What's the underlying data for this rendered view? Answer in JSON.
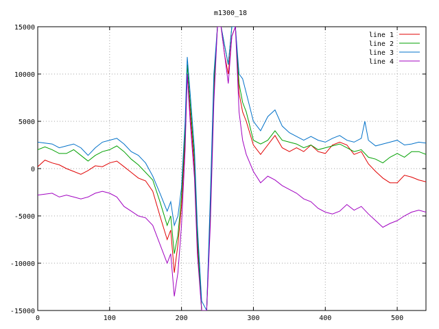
{
  "chart_data": {
    "type": "line",
    "title": "m1300_18",
    "xlabel": "",
    "ylabel": "",
    "xlim": [
      0,
      540
    ],
    "ylim": [
      -15000,
      15000
    ],
    "x_ticks": [
      0,
      100,
      200,
      300,
      400,
      500
    ],
    "y_ticks": [
      -15000,
      -10000,
      -5000,
      0,
      5000,
      10000,
      15000
    ],
    "x_tick_labels": [
      "0",
      "100",
      "200",
      "300",
      "400",
      "500"
    ],
    "y_tick_labels": [
      "-15000",
      "-10000",
      "-5000",
      "0",
      "5000",
      "10000",
      "15000"
    ],
    "grid": true,
    "legend_position": "top-right",
    "series": [
      {
        "name": "line 1",
        "color": "#e00000",
        "points": [
          [
            0,
            200
          ],
          [
            10,
            900
          ],
          [
            20,
            600
          ],
          [
            30,
            400
          ],
          [
            40,
            0
          ],
          [
            50,
            -300
          ],
          [
            60,
            -600
          ],
          [
            70,
            -200
          ],
          [
            80,
            300
          ],
          [
            90,
            200
          ],
          [
            100,
            600
          ],
          [
            110,
            800
          ],
          [
            120,
            200
          ],
          [
            130,
            -400
          ],
          [
            140,
            -1000
          ],
          [
            150,
            -1300
          ],
          [
            160,
            -2400
          ],
          [
            170,
            -5000
          ],
          [
            180,
            -7500
          ],
          [
            185,
            -6500
          ],
          [
            190,
            -11000
          ],
          [
            195,
            -8000
          ],
          [
            200,
            -4000
          ],
          [
            205,
            3000
          ],
          [
            208,
            10000
          ],
          [
            212,
            6000
          ],
          [
            218,
            0
          ],
          [
            222,
            -8000
          ],
          [
            228,
            -15000
          ],
          [
            235,
            -15000
          ],
          [
            240,
            -5000
          ],
          [
            245,
            8000
          ],
          [
            250,
            15000
          ],
          [
            255,
            15000
          ],
          [
            260,
            12000
          ],
          [
            265,
            10000
          ],
          [
            270,
            14000
          ],
          [
            275,
            15000
          ],
          [
            280,
            8000
          ],
          [
            285,
            6000
          ],
          [
            290,
            5000
          ],
          [
            300,
            2500
          ],
          [
            310,
            1500
          ],
          [
            320,
            2500
          ],
          [
            330,
            3500
          ],
          [
            340,
            2200
          ],
          [
            350,
            1800
          ],
          [
            360,
            2200
          ],
          [
            370,
            1800
          ],
          [
            380,
            2500
          ],
          [
            390,
            1800
          ],
          [
            400,
            1600
          ],
          [
            410,
            2500
          ],
          [
            420,
            2800
          ],
          [
            430,
            2500
          ],
          [
            440,
            1500
          ],
          [
            450,
            1800
          ],
          [
            460,
            500
          ],
          [
            470,
            -300
          ],
          [
            480,
            -1000
          ],
          [
            490,
            -1500
          ],
          [
            500,
            -1500
          ],
          [
            510,
            -700
          ],
          [
            520,
            -900
          ],
          [
            530,
            -1200
          ],
          [
            540,
            -1400
          ]
        ]
      },
      {
        "name": "line 2",
        "color": "#00a000",
        "points": [
          [
            0,
            2000
          ],
          [
            10,
            2300
          ],
          [
            20,
            2000
          ],
          [
            30,
            1600
          ],
          [
            40,
            1600
          ],
          [
            50,
            2000
          ],
          [
            60,
            1400
          ],
          [
            70,
            800
          ],
          [
            80,
            1400
          ],
          [
            90,
            1800
          ],
          [
            100,
            2000
          ],
          [
            110,
            2400
          ],
          [
            120,
            1800
          ],
          [
            130,
            1000
          ],
          [
            140,
            400
          ],
          [
            150,
            -400
          ],
          [
            160,
            -1200
          ],
          [
            170,
            -3500
          ],
          [
            180,
            -6000
          ],
          [
            185,
            -5000
          ],
          [
            190,
            -9000
          ],
          [
            195,
            -7000
          ],
          [
            200,
            -3000
          ],
          [
            205,
            4000
          ],
          [
            208,
            11000
          ],
          [
            212,
            7000
          ],
          [
            218,
            1000
          ],
          [
            222,
            -7000
          ],
          [
            228,
            -15000
          ],
          [
            235,
            -15000
          ],
          [
            240,
            -4000
          ],
          [
            245,
            9000
          ],
          [
            250,
            15000
          ],
          [
            255,
            15000
          ],
          [
            260,
            13000
          ],
          [
            265,
            11000
          ],
          [
            270,
            15000
          ],
          [
            275,
            15000
          ],
          [
            280,
            9000
          ],
          [
            285,
            7000
          ],
          [
            290,
            6000
          ],
          [
            300,
            3000
          ],
          [
            310,
            2600
          ],
          [
            320,
            3000
          ],
          [
            330,
            4000
          ],
          [
            340,
            3000
          ],
          [
            350,
            2800
          ],
          [
            360,
            2600
          ],
          [
            370,
            2200
          ],
          [
            380,
            2500
          ],
          [
            390,
            2000
          ],
          [
            400,
            2200
          ],
          [
            410,
            2400
          ],
          [
            420,
            2600
          ],
          [
            430,
            2200
          ],
          [
            440,
            1800
          ],
          [
            450,
            2000
          ],
          [
            460,
            1200
          ],
          [
            470,
            1000
          ],
          [
            480,
            600
          ],
          [
            490,
            1200
          ],
          [
            500,
            1600
          ],
          [
            510,
            1200
          ],
          [
            520,
            1800
          ],
          [
            530,
            1800
          ],
          [
            540,
            1500
          ]
        ]
      },
      {
        "name": "line 3",
        "color": "#0070c8",
        "points": [
          [
            0,
            2800
          ],
          [
            10,
            2700
          ],
          [
            20,
            2600
          ],
          [
            30,
            2200
          ],
          [
            40,
            2400
          ],
          [
            50,
            2600
          ],
          [
            60,
            2200
          ],
          [
            70,
            1400
          ],
          [
            80,
            2200
          ],
          [
            90,
            2800
          ],
          [
            100,
            3000
          ],
          [
            110,
            3200
          ],
          [
            120,
            2600
          ],
          [
            130,
            1800
          ],
          [
            140,
            1400
          ],
          [
            150,
            600
          ],
          [
            160,
            -800
          ],
          [
            170,
            -2600
          ],
          [
            180,
            -4500
          ],
          [
            185,
            -3500
          ],
          [
            190,
            -6000
          ],
          [
            195,
            -5000
          ],
          [
            200,
            -2000
          ],
          [
            205,
            5000
          ],
          [
            208,
            11800
          ],
          [
            212,
            8000
          ],
          [
            218,
            2000
          ],
          [
            222,
            -6000
          ],
          [
            228,
            -14000
          ],
          [
            235,
            -15000
          ],
          [
            240,
            -3000
          ],
          [
            245,
            10000
          ],
          [
            250,
            15000
          ],
          [
            255,
            15000
          ],
          [
            260,
            13000
          ],
          [
            265,
            11000
          ],
          [
            270,
            15000
          ],
          [
            275,
            15000
          ],
          [
            280,
            10000
          ],
          [
            285,
            9500
          ],
          [
            290,
            8000
          ],
          [
            300,
            5000
          ],
          [
            310,
            4000
          ],
          [
            320,
            5500
          ],
          [
            330,
            6200
          ],
          [
            340,
            4500
          ],
          [
            350,
            3800
          ],
          [
            360,
            3400
          ],
          [
            370,
            3000
          ],
          [
            380,
            3400
          ],
          [
            390,
            3000
          ],
          [
            400,
            2800
          ],
          [
            410,
            3200
          ],
          [
            420,
            3500
          ],
          [
            430,
            3000
          ],
          [
            440,
            2800
          ],
          [
            450,
            3200
          ],
          [
            455,
            5000
          ],
          [
            460,
            3000
          ],
          [
            470,
            2400
          ],
          [
            480,
            2600
          ],
          [
            490,
            2800
          ],
          [
            500,
            3000
          ],
          [
            510,
            2500
          ],
          [
            520,
            2600
          ],
          [
            530,
            2800
          ],
          [
            540,
            2700
          ]
        ]
      },
      {
        "name": "line 4",
        "color": "#a000c0",
        "points": [
          [
            0,
            -2800
          ],
          [
            10,
            -2700
          ],
          [
            20,
            -2600
          ],
          [
            30,
            -3000
          ],
          [
            40,
            -2800
          ],
          [
            50,
            -3000
          ],
          [
            60,
            -3200
          ],
          [
            70,
            -3000
          ],
          [
            80,
            -2600
          ],
          [
            90,
            -2400
          ],
          [
            100,
            -2600
          ],
          [
            110,
            -3000
          ],
          [
            120,
            -4000
          ],
          [
            130,
            -4500
          ],
          [
            140,
            -5000
          ],
          [
            150,
            -5200
          ],
          [
            160,
            -6000
          ],
          [
            170,
            -8000
          ],
          [
            180,
            -10000
          ],
          [
            185,
            -9000
          ],
          [
            190,
            -13500
          ],
          [
            195,
            -11000
          ],
          [
            200,
            -6000
          ],
          [
            205,
            2000
          ],
          [
            208,
            10000
          ],
          [
            212,
            5000
          ],
          [
            218,
            -1000
          ],
          [
            222,
            -9000
          ],
          [
            228,
            -15000
          ],
          [
            235,
            -15000
          ],
          [
            240,
            -6000
          ],
          [
            245,
            7000
          ],
          [
            250,
            15000
          ],
          [
            255,
            15000
          ],
          [
            260,
            12000
          ],
          [
            265,
            9000
          ],
          [
            270,
            14000
          ],
          [
            275,
            15000
          ],
          [
            280,
            6000
          ],
          [
            285,
            3000
          ],
          [
            290,
            1500
          ],
          [
            300,
            -300
          ],
          [
            310,
            -1500
          ],
          [
            320,
            -800
          ],
          [
            330,
            -1200
          ],
          [
            340,
            -1800
          ],
          [
            350,
            -2200
          ],
          [
            360,
            -2600
          ],
          [
            370,
            -3200
          ],
          [
            380,
            -3500
          ],
          [
            390,
            -4200
          ],
          [
            400,
            -4600
          ],
          [
            410,
            -4800
          ],
          [
            420,
            -4500
          ],
          [
            430,
            -3800
          ],
          [
            440,
            -4400
          ],
          [
            450,
            -4000
          ],
          [
            460,
            -4800
          ],
          [
            470,
            -5500
          ],
          [
            480,
            -6200
          ],
          [
            490,
            -5800
          ],
          [
            500,
            -5500
          ],
          [
            510,
            -5000
          ],
          [
            520,
            -4600
          ],
          [
            530,
            -4400
          ],
          [
            540,
            -4600
          ]
        ]
      }
    ]
  }
}
